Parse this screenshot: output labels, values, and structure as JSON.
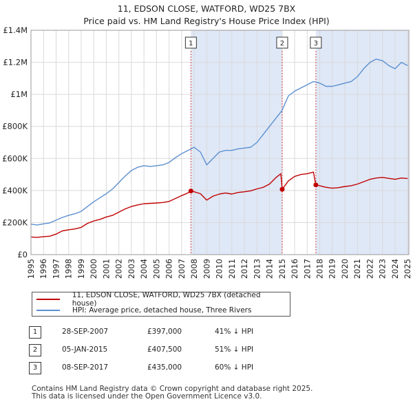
{
  "title": {
    "line1": "11, EDSON CLOSE, WATFORD, WD25 7BX",
    "line2": "Price paid vs. HM Land Registry's House Price Index (HPI)"
  },
  "colors": {
    "property_line": "#c00000",
    "hpi_line": "#5b8fd0",
    "shade": "#dfe8f7",
    "marker_line": "#d04040",
    "grid": "#d9d9d9"
  },
  "legend": {
    "property_label": "11, EDSON CLOSE, WATFORD, WD25 7BX (detached house)",
    "hpi_label": "HPI: Average price, detached house, Three Rivers"
  },
  "transactions": [
    {
      "num": "1",
      "date": "28-SEP-2007",
      "price": "£397,000",
      "hpi_diff": "41% ↓ HPI"
    },
    {
      "num": "2",
      "date": "05-JAN-2015",
      "price": "£407,500",
      "hpi_diff": "51% ↓ HPI"
    },
    {
      "num": "3",
      "date": "08-SEP-2017",
      "price": "£435,000",
      "hpi_diff": "60% ↓ HPI"
    }
  ],
  "footer": {
    "line1": "Contains HM Land Registry data © Crown copyright and database right 2025.",
    "line2": "This data is licensed under the Open Government Licence v3.0."
  },
  "chart_data": {
    "type": "line",
    "title": "11, EDSON CLOSE, WATFORD, WD25 7BX",
    "subtitle": "Price paid vs. HM Land Registry's House Price Index (HPI)",
    "xlabel": "",
    "ylabel": "",
    "xlim": [
      1995,
      2025.1
    ],
    "ylim": [
      0,
      1400000
    ],
    "grid": true,
    "x_ticks": [
      1995,
      1996,
      1997,
      1998,
      1999,
      2000,
      2001,
      2002,
      2003,
      2004,
      2005,
      2006,
      2007,
      2008,
      2009,
      2010,
      2011,
      2012,
      2013,
      2014,
      2015,
      2016,
      2017,
      2018,
      2019,
      2020,
      2021,
      2022,
      2023,
      2024,
      2025
    ],
    "y_ticks": [
      {
        "value": 0,
        "label": "£0"
      },
      {
        "value": 200000,
        "label": "£200K"
      },
      {
        "value": 400000,
        "label": "£400K"
      },
      {
        "value": 600000,
        "label": "£600K"
      },
      {
        "value": 800000,
        "label": "£800K"
      },
      {
        "value": 1000000,
        "label": "£1M"
      },
      {
        "value": 1200000,
        "label": "£1.2M"
      },
      {
        "value": 1400000,
        "label": "£1.4M"
      }
    ],
    "shaded_ranges": [
      [
        2007.74,
        2015.01
      ],
      [
        2017.69,
        2025.1
      ]
    ],
    "sales": [
      {
        "label": "1",
        "x": 2007.74,
        "y": 397000
      },
      {
        "label": "2",
        "x": 2015.01,
        "y": 407500
      },
      {
        "label": "3",
        "x": 2017.69,
        "y": 435000
      }
    ],
    "series": [
      {
        "name": "11, EDSON CLOSE, WATFORD, WD25 7BX (detached house)",
        "x": [
          1995,
          1995.5,
          1996,
          1996.5,
          1997,
          1997.5,
          1998,
          1998.5,
          1999,
          1999.5,
          2000,
          2000.5,
          2001,
          2001.5,
          2002,
          2002.5,
          2003,
          2003.5,
          2004,
          2004.5,
          2005,
          2005.5,
          2006,
          2006.5,
          2007,
          2007.5,
          2007.74,
          2008,
          2008.5,
          2009,
          2009.5,
          2010,
          2010.5,
          2011,
          2011.5,
          2012,
          2012.5,
          2013,
          2013.5,
          2014,
          2014.5,
          2014.9,
          2015.01,
          2015.5,
          2016,
          2016.5,
          2017,
          2017.5,
          2017.69,
          2018,
          2018.5,
          2019,
          2019.5,
          2020,
          2020.5,
          2021,
          2021.5,
          2022,
          2022.5,
          2023,
          2023.5,
          2024,
          2024.5,
          2025
        ],
        "values": [
          110000,
          108000,
          112000,
          115000,
          128000,
          148000,
          155000,
          160000,
          170000,
          195000,
          210000,
          220000,
          235000,
          245000,
          265000,
          285000,
          300000,
          310000,
          318000,
          320000,
          322000,
          325000,
          332000,
          350000,
          368000,
          385000,
          397000,
          392000,
          380000,
          340000,
          365000,
          378000,
          385000,
          378000,
          388000,
          392000,
          398000,
          410000,
          420000,
          440000,
          480000,
          505000,
          407500,
          460000,
          488000,
          500000,
          505000,
          515000,
          435000,
          430000,
          420000,
          415000,
          418000,
          425000,
          430000,
          440000,
          455000,
          470000,
          478000,
          482000,
          476000,
          470000,
          478000,
          475000
        ]
      },
      {
        "name": "HPI: Average price, detached house, Three Rivers",
        "x": [
          1995,
          1995.5,
          1996,
          1996.5,
          1997,
          1997.5,
          1998,
          1998.5,
          1999,
          1999.5,
          2000,
          2000.5,
          2001,
          2001.5,
          2002,
          2002.5,
          2003,
          2003.5,
          2004,
          2004.5,
          2005,
          2005.5,
          2006,
          2006.5,
          2007,
          2007.5,
          2008,
          2008.5,
          2009,
          2009.5,
          2010,
          2010.5,
          2011,
          2011.5,
          2012,
          2012.5,
          2013,
          2013.5,
          2014,
          2014.5,
          2015,
          2015.5,
          2016,
          2016.5,
          2017,
          2017.5,
          2018,
          2018.5,
          2019,
          2019.5,
          2020,
          2020.5,
          2021,
          2021.5,
          2022,
          2022.5,
          2023,
          2023.5,
          2024,
          2024.5,
          2025
        ],
        "values": [
          190000,
          185000,
          192000,
          198000,
          215000,
          232000,
          245000,
          255000,
          270000,
          300000,
          330000,
          355000,
          380000,
          410000,
          450000,
          490000,
          525000,
          545000,
          555000,
          550000,
          555000,
          560000,
          575000,
          605000,
          630000,
          650000,
          670000,
          640000,
          560000,
          600000,
          640000,
          650000,
          650000,
          660000,
          665000,
          670000,
          700000,
          750000,
          800000,
          850000,
          900000,
          990000,
          1020000,
          1040000,
          1060000,
          1080000,
          1070000,
          1050000,
          1050000,
          1060000,
          1070000,
          1080000,
          1110000,
          1160000,
          1200000,
          1220000,
          1210000,
          1180000,
          1160000,
          1200000,
          1180000
        ]
      }
    ]
  }
}
